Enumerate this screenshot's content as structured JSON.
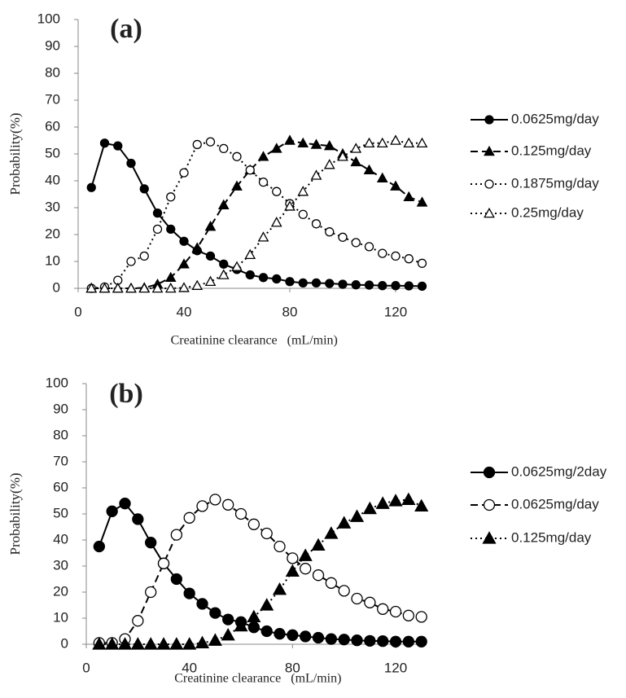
{
  "chart_data": [
    {
      "type": "line",
      "title": "(a)",
      "x_label": "Creatinine clearance   (mL/min)",
      "y_label": "Probability(%)",
      "x": [
        5,
        10,
        15,
        20,
        25,
        30,
        35,
        40,
        45,
        50,
        55,
        60,
        65,
        70,
        75,
        80,
        85,
        90,
        95,
        100,
        105,
        110,
        115,
        120,
        125,
        130
      ],
      "xlim": [
        0,
        130
      ],
      "xticks": [
        0,
        40,
        80,
        120
      ],
      "ylim": [
        0,
        100
      ],
      "yticks": [
        0,
        10,
        20,
        30,
        40,
        50,
        60,
        70,
        80,
        90,
        100
      ],
      "series": [
        {
          "name": "0.0625mg/day",
          "color": "#000000",
          "marker": "circle-filled",
          "dash": "solid",
          "values": [
            37.5,
            54,
            53,
            46.5,
            37,
            28,
            22,
            17.5,
            14,
            12,
            9,
            7,
            5,
            4,
            3.5,
            2.5,
            2,
            2,
            1.8,
            1.5,
            1.3,
            1.2,
            1,
            1,
            0.9,
            0.8
          ]
        },
        {
          "name": "0.125mg/day",
          "color": "#000000",
          "marker": "triangle-filled",
          "dash": "dashed",
          "values": [
            0,
            0,
            0,
            0,
            0.2,
            1.5,
            4,
            9,
            15,
            23,
            31,
            38,
            44,
            49,
            52,
            55,
            54,
            53.5,
            53,
            50,
            47,
            44,
            41,
            38,
            34,
            32
          ]
        },
        {
          "name": "0.1875mg/day",
          "color": "#000000",
          "marker": "circle-open",
          "dash": "dotted",
          "values": [
            0,
            0.5,
            3,
            10,
            12,
            22,
            34,
            43,
            53.5,
            54.5,
            52,
            49,
            44,
            39.5,
            36,
            31.5,
            27.5,
            24,
            21,
            19,
            17,
            15.5,
            13,
            12,
            11,
            9.3
          ]
        },
        {
          "name": "0.25mg/day",
          "color": "#000000",
          "marker": "triangle-open",
          "dash": "dotted",
          "values": [
            0,
            0,
            0,
            0,
            0,
            0,
            0,
            0.2,
            1,
            2.5,
            5,
            8,
            12.5,
            19,
            24.5,
            30.5,
            36,
            42,
            46,
            49,
            52,
            54,
            54,
            55,
            54,
            54
          ]
        }
      ]
    },
    {
      "type": "line",
      "title": "(b)",
      "x_label": "Creatinine clearance   (mL/min)",
      "y_label": "Probability(%)",
      "x": [
        5,
        10,
        15,
        20,
        25,
        30,
        35,
        40,
        45,
        50,
        55,
        60,
        65,
        70,
        75,
        80,
        85,
        90,
        95,
        100,
        105,
        110,
        115,
        120,
        125,
        130
      ],
      "xlim": [
        0,
        130
      ],
      "xticks": [
        0,
        40,
        80,
        120
      ],
      "ylim": [
        0,
        100
      ],
      "yticks": [
        0,
        10,
        20,
        30,
        40,
        50,
        60,
        70,
        80,
        90,
        100
      ],
      "series": [
        {
          "name": "0.0625mg/2day",
          "color": "#000000",
          "marker": "circle-filled",
          "dash": "solid",
          "values": [
            37.5,
            51,
            54,
            48,
            39,
            31,
            25,
            19.5,
            15.5,
            12,
            9.5,
            8.5,
            6.5,
            5,
            4,
            3.5,
            3,
            2.5,
            2,
            1.8,
            1.5,
            1.3,
            1.2,
            1,
            1,
            1
          ]
        },
        {
          "name": "0.0625mg/day",
          "color": "#000000",
          "marker": "circle-open",
          "dash": "dashed",
          "values": [
            0.5,
            0.5,
            2,
            9,
            20,
            31,
            42,
            48.5,
            53,
            55.5,
            53.5,
            50,
            46,
            42.5,
            37.5,
            33,
            29,
            26.5,
            23.5,
            20.5,
            17.5,
            16,
            13.5,
            12.5,
            11,
            10.5
          ]
        },
        {
          "name": "0.125mg/day",
          "color": "#000000",
          "marker": "triangle-filled",
          "dash": "dotted",
          "values": [
            0,
            0,
            0,
            0,
            0,
            0,
            0,
            0,
            0.5,
            1.5,
            3.5,
            7,
            10.5,
            15,
            21,
            28,
            34,
            38,
            42.5,
            46.5,
            49,
            52,
            54,
            55,
            55.5,
            53
          ]
        }
      ]
    }
  ]
}
